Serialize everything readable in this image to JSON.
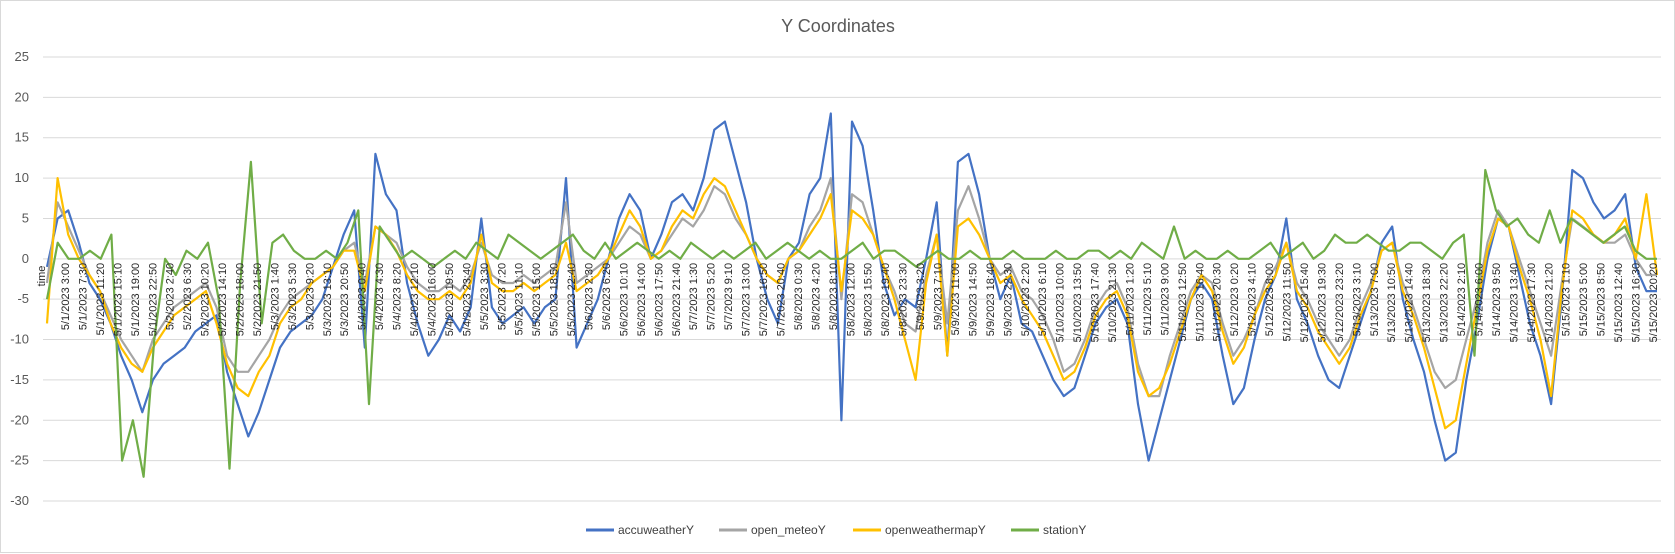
{
  "chart_data": {
    "type": "line",
    "title": "Y Coordinates",
    "xlabel": "time",
    "ylabel": "",
    "ylim": [
      -30,
      25
    ],
    "yticks": [
      25,
      20,
      15,
      10,
      5,
      0,
      -5,
      -10,
      -15,
      -20,
      -25,
      -30
    ],
    "grid": true,
    "legend_position": "bottom",
    "x_tick_labels": [
      "5/1/2023 3:00",
      "5/1/2023 7:30",
      "5/1/2023 11:20",
      "5/1/2023 15:10",
      "5/1/2023 19:00",
      "5/1/2023 22:50",
      "5/2/2023 2:40",
      "5/2/2023 6:30",
      "5/2/2023 10:20",
      "5/2/2023 14:10",
      "5/2/2023 18:00",
      "5/2/2023 21:50",
      "5/3/2023 1:40",
      "5/3/2023 5:30",
      "5/3/2023 9:20",
      "5/3/2023 13:10",
      "5/3/2023 20:50",
      "5/4/2023 0:40",
      "5/4/2023 4:30",
      "5/4/2023 8:20",
      "5/4/2023 12:10",
      "5/4/2023 16:00",
      "5/4/2023 19:50",
      "5/4/2023 23:40",
      "5/5/2023 3:30",
      "5/5/2023 7:20",
      "5/5/2023 11:10",
      "5/5/2023 15:00",
      "5/5/2023 18:50",
      "5/5/2023 22:40",
      "5/6/2023 2:30",
      "5/6/2023 6:20",
      "5/6/2023 10:10",
      "5/6/2023 14:00",
      "5/6/2023 17:50",
      "5/6/2023 21:40",
      "5/7/2023 1:30",
      "5/7/2023 5:20",
      "5/7/2023 9:10",
      "5/7/2023 13:00",
      "5/7/2023 16:50",
      "5/7/2023 20:40",
      "5/8/2023 0:30",
      "5/8/2023 4:20",
      "5/8/2023 8:10",
      "5/8/2023 12:00",
      "5/8/2023 15:50",
      "5/8/2023 19:40",
      "5/8/2023 23:30",
      "5/9/2023 3:20",
      "5/9/2023 7:10",
      "5/9/2023 11:00",
      "5/9/2023 14:50",
      "5/9/2023 18:40",
      "5/9/2023 22:30",
      "5/10/2023 2:20",
      "5/10/2023 6:10",
      "5/10/2023 10:00",
      "5/10/2023 13:50",
      "5/10/2023 17:40",
      "5/10/2023 21:30",
      "5/11/2023 1:20",
      "5/11/2023 5:10",
      "5/11/2023 9:00",
      "5/11/2023 12:50",
      "5/11/2023 16:40",
      "5/11/2023 20:30",
      "5/12/2023 0:20",
      "5/12/2023 4:10",
      "5/12/2023 8:00",
      "5/12/2023 11:50",
      "5/12/2023 15:40",
      "5/12/2023 19:30",
      "5/12/2023 23:20",
      "5/13/2023 3:10",
      "5/13/2023 7:00",
      "5/13/2023 10:50",
      "5/13/2023 14:40",
      "5/13/2023 18:30",
      "5/13/2023 22:20",
      "5/14/2023 2:10",
      "5/14/2023 6:00",
      "5/14/2023 9:50",
      "5/14/2023 13:40",
      "5/14/2023 17:30",
      "5/14/2023 21:20",
      "5/15/2023 1:10",
      "5/15/2023 5:00",
      "5/15/2023 8:50",
      "5/15/2023 12:40",
      "5/15/2023 16:30",
      "5/15/2023 20:20"
    ],
    "series": [
      {
        "name": "accuweatherY",
        "color": "#4472C4",
        "values": [
          -1,
          5,
          6,
          2,
          -3,
          -5,
          -8,
          -12,
          -15,
          -19,
          -15,
          -13,
          -12,
          -11,
          -9,
          -8,
          -7,
          -14,
          -18,
          -22,
          -19,
          -15,
          -11,
          -9,
          -8,
          -7,
          -5,
          -1,
          3,
          6,
          -11,
          13,
          8,
          6,
          -3,
          -8,
          -12,
          -10,
          -7,
          -9,
          -6,
          5,
          -6,
          -8,
          -7,
          -6,
          -8,
          -6,
          -5,
          10,
          -11,
          -8,
          -5,
          0,
          5,
          8,
          6,
          0,
          3,
          7,
          8,
          6,
          10,
          16,
          17,
          12,
          7,
          0,
          -5,
          -8,
          0,
          2,
          8,
          10,
          18,
          -20,
          17,
          14,
          6,
          -3,
          -7,
          -5,
          -6,
          0,
          7,
          -12,
          12,
          13,
          8,
          0,
          -5,
          -2,
          -8,
          -9,
          -12,
          -15,
          -17,
          -16,
          -12,
          -8,
          -6,
          -5,
          -8,
          -18,
          -25,
          -20,
          -15,
          -10,
          -5,
          -3,
          -5,
          -12,
          -18,
          -16,
          -10,
          -5,
          -2,
          5,
          -5,
          -8,
          -12,
          -15,
          -16,
          -12,
          -8,
          -4,
          2,
          4,
          -5,
          -10,
          -14,
          -20,
          -25,
          -24,
          -15,
          -8,
          0,
          5,
          4,
          -2,
          -8,
          -12,
          -18,
          -5,
          11,
          10,
          7,
          5,
          6,
          8,
          -1,
          -4,
          -4
        ]
      },
      {
        "name": "open_meteoY",
        "color": "#A5A5A5",
        "values": [
          -3,
          7,
          4,
          1,
          -2,
          -4,
          -7,
          -10,
          -12,
          -14,
          -10,
          -8,
          -6,
          -5,
          -4,
          -3,
          -6,
          -12,
          -14,
          -14,
          -12,
          -10,
          -7,
          -5,
          -4,
          -3,
          -2,
          -1,
          1,
          2,
          -3,
          4,
          3,
          2,
          -1,
          -3,
          -4,
          -4,
          -3,
          -4,
          -2,
          2,
          -2,
          -3,
          -3,
          -2,
          -3,
          -2,
          -1,
          7,
          -3,
          -2,
          -1,
          0,
          2,
          4,
          3,
          0,
          1,
          3,
          5,
          4,
          6,
          9,
          8,
          5,
          3,
          0,
          -2,
          -3,
          0,
          1,
          4,
          6,
          10,
          -5,
          8,
          7,
          3,
          -1,
          -4,
          -8,
          -9,
          -2,
          3,
          -8,
          6,
          9,
          5,
          0,
          -2,
          -1,
          -4,
          -5,
          -7,
          -10,
          -14,
          -13,
          -10,
          -6,
          -4,
          -3,
          -6,
          -13,
          -17,
          -17,
          -12,
          -8,
          -4,
          -2,
          -3,
          -8,
          -12,
          -10,
          -7,
          -3,
          -1,
          2,
          -3,
          -5,
          -8,
          -10,
          -12,
          -10,
          -6,
          -3,
          1,
          2,
          -3,
          -6,
          -10,
          -14,
          -16,
          -15,
          -10,
          -5,
          2,
          6,
          4,
          0,
          -4,
          -8,
          -12,
          -3,
          5,
          4,
          3,
          2,
          2,
          3,
          0,
          -2,
          -2
        ]
      },
      {
        "name": "openweathermapY",
        "color": "#FFC000",
        "values": [
          -8,
          10,
          3,
          0,
          -2,
          -4,
          -8,
          -11,
          -13,
          -14,
          -11,
          -9,
          -7,
          -6,
          -5,
          -4,
          -8,
          -13,
          -16,
          -17,
          -14,
          -12,
          -8,
          -6,
          -5,
          -3,
          -2,
          -1,
          1,
          1,
          -4,
          4,
          3,
          1,
          -2,
          -4,
          -5,
          -5,
          -4,
          -5,
          -3,
          3,
          -3,
          -4,
          -4,
          -3,
          -4,
          -3,
          -2,
          2,
          -4,
          -3,
          -2,
          0,
          3,
          6,
          4,
          0,
          1,
          4,
          6,
          5,
          8,
          10,
          9,
          6,
          3,
          0,
          -2,
          -3,
          0,
          1,
          3,
          5,
          8,
          -4,
          6,
          5,
          3,
          -1,
          -5,
          -10,
          -15,
          -3,
          3,
          -12,
          4,
          5,
          3,
          0,
          -3,
          -2,
          -5,
          -7,
          -9,
          -12,
          -15,
          -14,
          -11,
          -7,
          -5,
          -4,
          -7,
          -14,
          -17,
          -16,
          -13,
          -9,
          -5,
          -2,
          -4,
          -9,
          -13,
          -11,
          -7,
          -4,
          -2,
          2,
          -4,
          -6,
          -9,
          -11,
          -13,
          -11,
          -7,
          -4,
          1,
          2,
          -4,
          -7,
          -11,
          -16,
          -21,
          -20,
          -13,
          -6,
          1,
          5,
          4,
          -1,
          -5,
          -10,
          -17,
          -4,
          6,
          5,
          3,
          2,
          3,
          5,
          0,
          8,
          -2
        ]
      },
      {
        "name": "stationY",
        "color": "#70AD47",
        "values": [
          -5,
          2,
          0,
          0,
          1,
          0,
          3,
          -25,
          -20,
          -27,
          -10,
          0,
          -2,
          1,
          0,
          2,
          -5,
          -26,
          -3,
          12,
          -8,
          2,
          3,
          1,
          0,
          0,
          1,
          0,
          2,
          6,
          -18,
          4,
          2,
          0,
          1,
          0,
          -1,
          0,
          1,
          0,
          2,
          1,
          0,
          3,
          2,
          1,
          0,
          1,
          2,
          3,
          1,
          0,
          2,
          0,
          1,
          2,
          1,
          0,
          1,
          0,
          2,
          1,
          0,
          1,
          0,
          1,
          2,
          0,
          1,
          2,
          1,
          0,
          1,
          0,
          0,
          1,
          2,
          0,
          1,
          1,
          0,
          -1,
          0,
          1,
          0,
          0,
          1,
          0,
          0,
          0,
          1,
          0,
          0,
          0,
          1,
          0,
          0,
          1,
          1,
          0,
          1,
          0,
          2,
          1,
          0,
          4,
          0,
          1,
          0,
          0,
          1,
          0,
          0,
          1,
          2,
          0,
          1,
          2,
          0,
          1,
          3,
          2,
          2,
          3,
          2,
          1,
          1,
          2,
          2,
          1,
          0,
          2,
          3,
          -12,
          11,
          6,
          4,
          5,
          3,
          2,
          6,
          2,
          5,
          4,
          3,
          2,
          3,
          4,
          1,
          0,
          0
        ]
      }
    ]
  }
}
